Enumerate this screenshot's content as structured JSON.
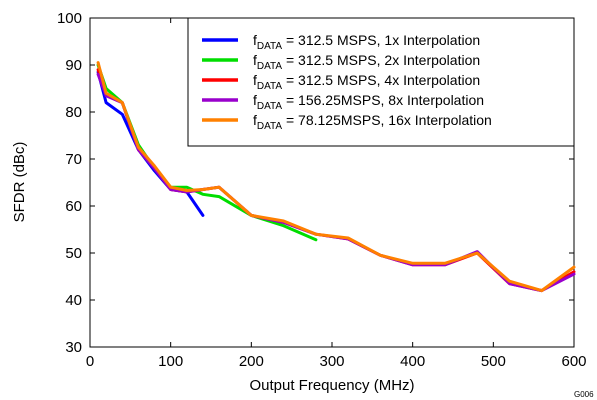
{
  "chart_data": {
    "type": "line",
    "xlabel": "Output Frequency (MHz)",
    "ylabel": "SFDR (dBc)",
    "xlim": [
      0,
      600
    ],
    "ylim": [
      30,
      100
    ],
    "xticks": [
      0,
      100,
      200,
      300,
      400,
      500,
      600
    ],
    "yticks": [
      30,
      40,
      50,
      60,
      70,
      80,
      90,
      100
    ],
    "grid": false,
    "legend_placement": "top-right",
    "corner_code": "G006",
    "series": [
      {
        "name": "fDATA = 312.5 MSPS, 1x Interpolation",
        "label_main": "f",
        "label_sub": "DATA",
        "label_rest": " = 312.5 MSPS, 1x Interpolation",
        "color": "#0000ff",
        "x": [
          10,
          20,
          40,
          60,
          80,
          100,
          120,
          140
        ],
        "y": [
          88.5,
          82,
          79.5,
          72,
          67.5,
          63.5,
          63,
          58
        ]
      },
      {
        "name": "fDATA = 312.5 MSPS, 2x Interpolation",
        "label_main": "f",
        "label_sub": "DATA",
        "label_rest": " = 312.5 MSPS, 2x Interpolation",
        "color": "#00dd00",
        "x": [
          10,
          20,
          40,
          60,
          80,
          100,
          120,
          140,
          160,
          200,
          240,
          280
        ],
        "y": [
          90,
          85,
          82,
          73,
          68,
          64,
          64,
          62.5,
          62,
          58,
          55.8,
          52.8
        ]
      },
      {
        "name": "fDATA = 312.5 MSPS, 4x Interpolation",
        "label_main": "f",
        "label_sub": "DATA",
        "label_rest": " = 312.5 MSPS, 4x Interpolation",
        "color": "#ff0000",
        "x": [
          10,
          20,
          40,
          60,
          80,
          100,
          120,
          140,
          160,
          200,
          240,
          280,
          320,
          360,
          400,
          440,
          480,
          520,
          560,
          600
        ],
        "y": [
          89,
          83.5,
          82,
          72,
          68,
          63.5,
          63,
          63.5,
          64,
          58,
          56.5,
          54,
          53,
          49.5,
          47.5,
          47.5,
          50,
          43.5,
          42,
          46
        ]
      },
      {
        "name": "fDATA = 156.25MSPS, 8x Interpolation",
        "label_main": "f",
        "label_sub": "DATA",
        "label_rest": " = 156.25MSPS, 8x Interpolation",
        "color": "#9900cc",
        "x": [
          10,
          20,
          40,
          60,
          80,
          100,
          120,
          140,
          160,
          200,
          240,
          280,
          320,
          360,
          400,
          440,
          480,
          520,
          560,
          600
        ],
        "y": [
          88,
          83.5,
          82,
          72,
          68,
          63.5,
          63,
          63.5,
          64,
          58,
          56.5,
          54,
          53,
          49.5,
          47.5,
          47.5,
          50.3,
          43.5,
          42,
          45.5
        ]
      },
      {
        "name": "fDATA = 78.125MSPS, 16x Interpolation",
        "label_main": "f",
        "label_sub": "DATA",
        "label_rest": " = 78.125MSPS, 16x Interpolation",
        "color": "#ff8000",
        "x": [
          10,
          20,
          40,
          60,
          80,
          100,
          120,
          140,
          160,
          200,
          240,
          280,
          320,
          360,
          400,
          440,
          480,
          520,
          560,
          600
        ],
        "y": [
          90.5,
          84,
          82,
          72.5,
          68.5,
          64,
          63.3,
          63.5,
          64,
          58,
          56.8,
          54,
          53.2,
          49.5,
          47.8,
          47.8,
          50,
          44,
          42,
          47
        ]
      }
    ]
  }
}
